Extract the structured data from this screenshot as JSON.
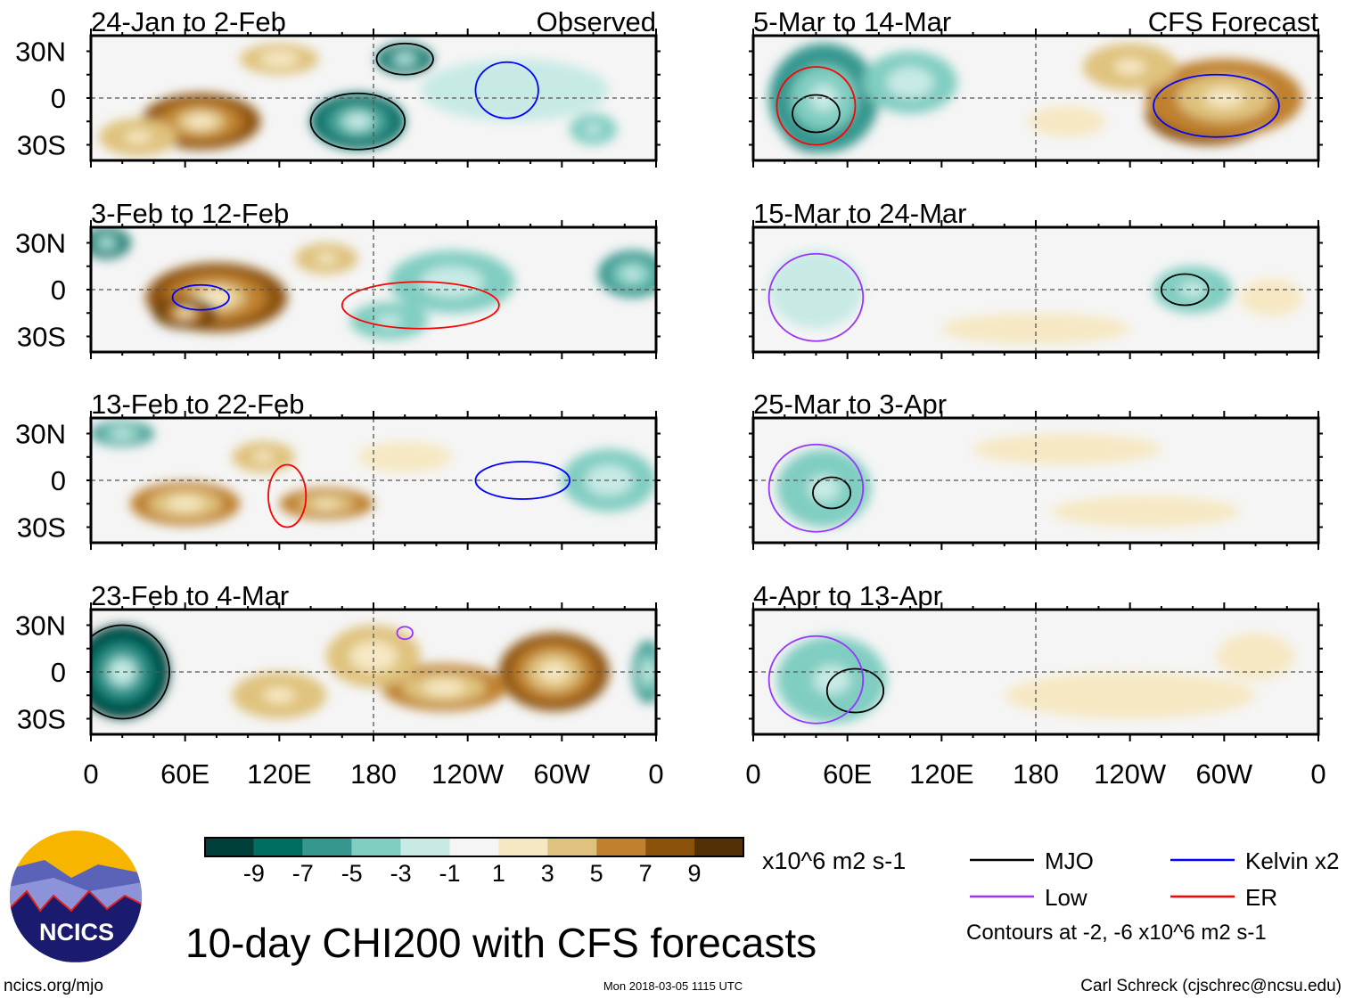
{
  "chart_data": {
    "type": "heatmap",
    "title": "10-day CHI200 with CFS forecasts",
    "units": "x10^6 m2 s-1",
    "column_headers": [
      "Observed",
      "CFS Forecast"
    ],
    "lat_ticks": [
      "30N",
      "0",
      "30S"
    ],
    "lon_ticks": [
      "0",
      "60E",
      "120E",
      "180",
      "120W",
      "60W",
      "0"
    ],
    "lat_range": [
      -40,
      40
    ],
    "lon_range": [
      0,
      360
    ],
    "colorbar": {
      "labels": [
        "-9",
        "-7",
        "-5",
        "-3",
        "-1",
        "1",
        "3",
        "5",
        "7",
        "9"
      ],
      "colors": [
        "#01403a",
        "#016c62",
        "#35978f",
        "#80cdc1",
        "#c7eae5",
        "#f5f5f5",
        "#f6e8c3",
        "#dfc27d",
        "#bf812d",
        "#8c510a",
        "#543005"
      ]
    },
    "legend": [
      {
        "label": "MJO",
        "color": "#000000"
      },
      {
        "label": "Kelvin x2",
        "color": "#0000ff"
      },
      {
        "label": "Low",
        "color": "#9933ff"
      },
      {
        "label": "ER",
        "color": "#ff0000"
      }
    ],
    "contour_note": "Contours at -2, -6 x10^6 m2 s-1",
    "panels": [
      {
        "period": "24-Jan to 2-Feb",
        "column": 0,
        "row": 0,
        "anomalies": [
          [
            70,
            -15,
            7,
            38,
            18
          ],
          [
            120,
            25,
            4,
            25,
            10
          ],
          [
            30,
            -25,
            3,
            25,
            12
          ],
          [
            170,
            -15,
            -7,
            30,
            18
          ],
          [
            200,
            25,
            -7,
            18,
            10
          ],
          [
            270,
            5,
            -2,
            60,
            20
          ],
          [
            320,
            -20,
            -3,
            15,
            10
          ]
        ],
        "contours": [
          [
            "MJO",
            170,
            -15,
            30,
            18
          ],
          [
            "MJO",
            200,
            25,
            18,
            10
          ],
          [
            "Kelvin",
            265,
            5,
            20,
            18
          ]
        ]
      },
      {
        "period": "3-Feb to 12-Feb",
        "column": 0,
        "row": 1,
        "anomalies": [
          [
            80,
            -5,
            7,
            45,
            22
          ],
          [
            60,
            -15,
            9,
            20,
            10
          ],
          [
            150,
            20,
            3,
            20,
            10
          ],
          [
            10,
            30,
            -7,
            15,
            10
          ],
          [
            230,
            5,
            -4,
            40,
            20
          ],
          [
            345,
            10,
            -5,
            22,
            15
          ],
          [
            190,
            -20,
            -3,
            25,
            12
          ]
        ],
        "contours": [
          [
            "Kelvin",
            70,
            -5,
            18,
            8
          ],
          [
            "ER",
            210,
            -10,
            50,
            15
          ]
        ]
      },
      {
        "period": "13-Feb to 22-Feb",
        "column": 0,
        "row": 2,
        "anomalies": [
          [
            60,
            -15,
            6,
            35,
            14
          ],
          [
            150,
            -15,
            5,
            30,
            10
          ],
          [
            110,
            15,
            3,
            20,
            10
          ],
          [
            330,
            0,
            -4,
            30,
            20
          ],
          [
            20,
            30,
            -6,
            20,
            8
          ],
          [
            200,
            15,
            2,
            30,
            10
          ]
        ],
        "contours": [
          [
            "Kelvin",
            275,
            0,
            30,
            12
          ],
          [
            "ER",
            125,
            -10,
            12,
            20
          ]
        ]
      },
      {
        "period": "23-Feb to 4-Mar",
        "column": 0,
        "row": 3,
        "anomalies": [
          [
            20,
            0,
            -9,
            30,
            30
          ],
          [
            295,
            0,
            8,
            35,
            25
          ],
          [
            225,
            -10,
            6,
            40,
            15
          ],
          [
            180,
            10,
            4,
            30,
            20
          ],
          [
            355,
            0,
            -6,
            10,
            20
          ],
          [
            120,
            -15,
            3,
            30,
            15
          ]
        ],
        "contours": [
          [
            "MJO",
            20,
            0,
            30,
            30
          ],
          [
            "Low",
            200,
            25,
            5,
            4
          ]
        ]
      },
      {
        "period": "5-Mar to 14-Mar",
        "column": 1,
        "row": 0,
        "anomalies": [
          [
            40,
            -10,
            -9,
            25,
            25
          ],
          [
            45,
            0,
            -5,
            35,
            35
          ],
          [
            100,
            10,
            -4,
            30,
            20
          ],
          [
            290,
            -10,
            7,
            40,
            20
          ],
          [
            300,
            0,
            5,
            50,
            25
          ],
          [
            240,
            20,
            3,
            30,
            15
          ],
          [
            200,
            -15,
            2,
            25,
            10
          ]
        ],
        "contours": [
          [
            "MJO",
            40,
            -10,
            15,
            12
          ],
          [
            "ER",
            40,
            -5,
            25,
            25
          ],
          [
            "Kelvin",
            295,
            -5,
            40,
            20
          ]
        ]
      },
      {
        "period": "15-Mar to 24-Mar",
        "column": 1,
        "row": 1,
        "anomalies": [
          [
            40,
            0,
            -2,
            30,
            25
          ],
          [
            280,
            0,
            -3,
            25,
            15
          ],
          [
            330,
            -5,
            2,
            20,
            12
          ],
          [
            180,
            -25,
            2,
            60,
            10
          ]
        ],
        "contours": [
          [
            "Low",
            40,
            -5,
            30,
            28
          ],
          [
            "MJO",
            275,
            0,
            15,
            10
          ]
        ]
      },
      {
        "period": "25-Mar to 3-Apr",
        "column": 1,
        "row": 2,
        "anomalies": [
          [
            45,
            -5,
            -6,
            20,
            18
          ],
          [
            45,
            -5,
            -3,
            30,
            25
          ],
          [
            200,
            20,
            2,
            60,
            10
          ],
          [
            250,
            -20,
            2,
            60,
            10
          ]
        ],
        "contours": [
          [
            "MJO",
            50,
            -8,
            12,
            10
          ],
          [
            "Low",
            40,
            -5,
            30,
            28
          ]
        ]
      },
      {
        "period": "4-Apr to 13-Apr",
        "column": 1,
        "row": 3,
        "anomalies": [
          [
            45,
            -10,
            -5,
            22,
            20
          ],
          [
            50,
            -5,
            -3,
            35,
            28
          ],
          [
            240,
            -15,
            2,
            80,
            15
          ],
          [
            320,
            10,
            2,
            25,
            15
          ]
        ],
        "contours": [
          [
            "MJO",
            65,
            -12,
            18,
            14
          ],
          [
            "Low",
            40,
            -5,
            30,
            28
          ]
        ]
      }
    ]
  },
  "footer": {
    "logo_text": "NCICS",
    "url": "ncics.org/mjo",
    "timestamp": "Mon 2018-03-05 1115 UTC",
    "credit": "Carl Schreck (cjschrec@ncsu.edu)"
  }
}
